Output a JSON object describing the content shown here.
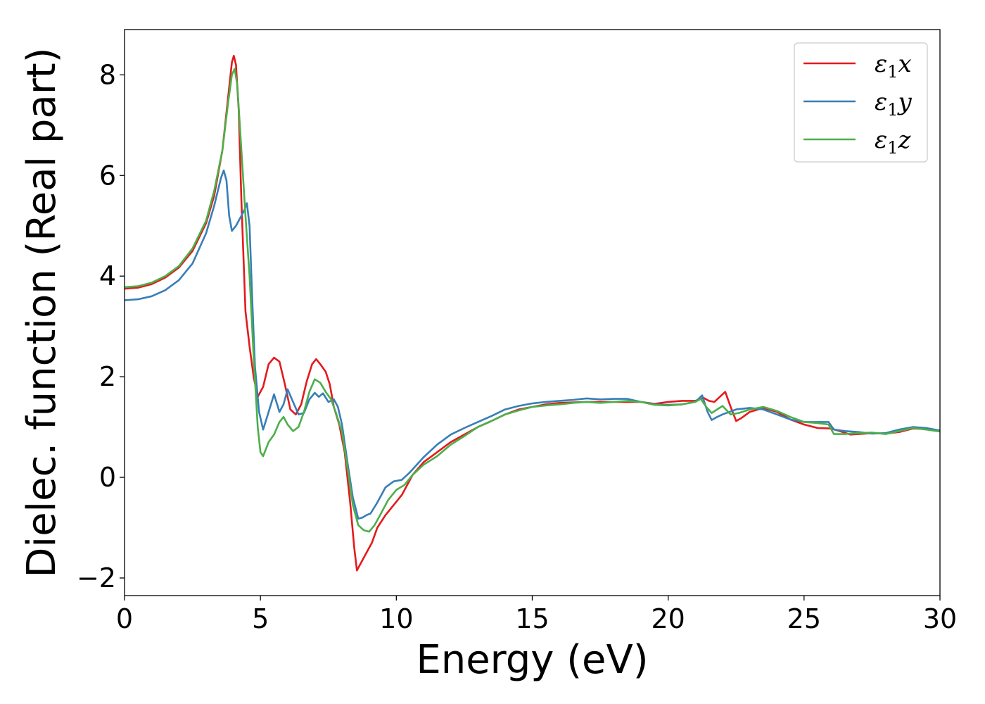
{
  "chart_data": {
    "type": "line",
    "title": "",
    "xlabel": "Energy (eV)",
    "ylabel": "Dielec. function (Real part)",
    "xlim": [
      0,
      30
    ],
    "ylim": [
      -2.35,
      8.9
    ],
    "xticks": [
      0,
      5,
      10,
      15,
      20,
      25,
      30
    ],
    "yticks": [
      -2,
      0,
      2,
      4,
      6,
      8
    ],
    "grid": false,
    "legend_position": "top-right",
    "series": [
      {
        "name": "ε1x",
        "label_base": "ε",
        "label_sub": "1",
        "label_suffix": "x",
        "color": "#e41a1c",
        "points": [
          [
            0,
            3.75
          ],
          [
            0.5,
            3.77
          ],
          [
            1.0,
            3.84
          ],
          [
            1.5,
            3.97
          ],
          [
            2.0,
            4.17
          ],
          [
            2.5,
            4.5
          ],
          [
            3.0,
            5.05
          ],
          [
            3.3,
            5.6
          ],
          [
            3.6,
            6.5
          ],
          [
            3.8,
            7.5
          ],
          [
            3.95,
            8.25
          ],
          [
            4.02,
            8.38
          ],
          [
            4.1,
            8.2
          ],
          [
            4.2,
            7.3
          ],
          [
            4.3,
            5.5
          ],
          [
            4.45,
            3.3
          ],
          [
            4.6,
            2.6
          ],
          [
            4.75,
            2.0
          ],
          [
            4.9,
            1.6
          ],
          [
            5.1,
            1.8
          ],
          [
            5.3,
            2.25
          ],
          [
            5.5,
            2.38
          ],
          [
            5.7,
            2.3
          ],
          [
            5.9,
            1.85
          ],
          [
            6.1,
            1.35
          ],
          [
            6.3,
            1.25
          ],
          [
            6.5,
            1.45
          ],
          [
            6.7,
            1.9
          ],
          [
            6.9,
            2.25
          ],
          [
            7.05,
            2.35
          ],
          [
            7.2,
            2.25
          ],
          [
            7.4,
            2.1
          ],
          [
            7.55,
            1.85
          ],
          [
            7.7,
            1.4
          ],
          [
            7.9,
            1.05
          ],
          [
            8.1,
            0.5
          ],
          [
            8.3,
            -0.5
          ],
          [
            8.45,
            -1.4
          ],
          [
            8.55,
            -1.85
          ],
          [
            8.7,
            -1.7
          ],
          [
            8.9,
            -1.5
          ],
          [
            9.1,
            -1.3
          ],
          [
            9.3,
            -1.0
          ],
          [
            9.6,
            -0.75
          ],
          [
            9.9,
            -0.55
          ],
          [
            10.2,
            -0.35
          ],
          [
            10.6,
            0.05
          ],
          [
            11.0,
            0.3
          ],
          [
            11.5,
            0.5
          ],
          [
            12.0,
            0.7
          ],
          [
            12.5,
            0.85
          ],
          [
            13.0,
            1.0
          ],
          [
            13.5,
            1.12
          ],
          [
            14.0,
            1.25
          ],
          [
            14.5,
            1.35
          ],
          [
            15.0,
            1.4
          ],
          [
            15.5,
            1.45
          ],
          [
            16.0,
            1.48
          ],
          [
            17.0,
            1.5
          ],
          [
            18.0,
            1.5
          ],
          [
            19.0,
            1.5
          ],
          [
            19.5,
            1.46
          ],
          [
            20.0,
            1.5
          ],
          [
            20.5,
            1.52
          ],
          [
            21.0,
            1.52
          ],
          [
            21.3,
            1.58
          ],
          [
            21.5,
            1.52
          ],
          [
            21.7,
            1.5
          ],
          [
            21.9,
            1.6
          ],
          [
            22.1,
            1.7
          ],
          [
            22.3,
            1.4
          ],
          [
            22.5,
            1.12
          ],
          [
            22.7,
            1.18
          ],
          [
            23.0,
            1.3
          ],
          [
            23.5,
            1.38
          ],
          [
            24.0,
            1.3
          ],
          [
            24.5,
            1.15
          ],
          [
            25.0,
            1.05
          ],
          [
            25.5,
            0.98
          ],
          [
            26.0,
            0.97
          ],
          [
            26.3,
            0.92
          ],
          [
            26.7,
            0.85
          ],
          [
            27.0,
            0.86
          ],
          [
            27.5,
            0.88
          ],
          [
            28.0,
            0.87
          ],
          [
            28.5,
            0.9
          ],
          [
            29.0,
            0.97
          ],
          [
            29.5,
            0.96
          ],
          [
            30.0,
            0.93
          ]
        ]
      },
      {
        "name": "ε1y",
        "label_base": "ε",
        "label_sub": "1",
        "label_suffix": "y",
        "color": "#377eb8",
        "points": [
          [
            0,
            3.52
          ],
          [
            0.5,
            3.54
          ],
          [
            1.0,
            3.6
          ],
          [
            1.5,
            3.72
          ],
          [
            2.0,
            3.92
          ],
          [
            2.5,
            4.25
          ],
          [
            3.0,
            4.85
          ],
          [
            3.3,
            5.4
          ],
          [
            3.55,
            5.95
          ],
          [
            3.65,
            6.1
          ],
          [
            3.75,
            5.9
          ],
          [
            3.85,
            5.2
          ],
          [
            3.95,
            4.9
          ],
          [
            4.1,
            5.0
          ],
          [
            4.25,
            5.15
          ],
          [
            4.4,
            5.3
          ],
          [
            4.5,
            5.45
          ],
          [
            4.6,
            5.0
          ],
          [
            4.7,
            3.5
          ],
          [
            4.8,
            2.2
          ],
          [
            4.95,
            1.3
          ],
          [
            5.1,
            0.95
          ],
          [
            5.3,
            1.3
          ],
          [
            5.5,
            1.65
          ],
          [
            5.7,
            1.3
          ],
          [
            5.85,
            1.45
          ],
          [
            6.0,
            1.75
          ],
          [
            6.2,
            1.5
          ],
          [
            6.4,
            1.25
          ],
          [
            6.6,
            1.28
          ],
          [
            6.8,
            1.55
          ],
          [
            7.0,
            1.68
          ],
          [
            7.15,
            1.6
          ],
          [
            7.3,
            1.67
          ],
          [
            7.5,
            1.5
          ],
          [
            7.7,
            1.55
          ],
          [
            7.85,
            1.4
          ],
          [
            8.0,
            1.05
          ],
          [
            8.2,
            0.3
          ],
          [
            8.4,
            -0.4
          ],
          [
            8.6,
            -0.82
          ],
          [
            8.75,
            -0.8
          ],
          [
            8.9,
            -0.75
          ],
          [
            9.05,
            -0.72
          ],
          [
            9.3,
            -0.5
          ],
          [
            9.6,
            -0.2
          ],
          [
            9.9,
            -0.08
          ],
          [
            10.2,
            -0.05
          ],
          [
            10.5,
            0.1
          ],
          [
            11.0,
            0.4
          ],
          [
            11.5,
            0.65
          ],
          [
            12.0,
            0.85
          ],
          [
            12.5,
            0.98
          ],
          [
            13.0,
            1.1
          ],
          [
            13.5,
            1.22
          ],
          [
            14.0,
            1.35
          ],
          [
            14.5,
            1.42
          ],
          [
            15.0,
            1.47
          ],
          [
            15.5,
            1.5
          ],
          [
            16.0,
            1.52
          ],
          [
            16.5,
            1.54
          ],
          [
            17.0,
            1.57
          ],
          [
            17.5,
            1.55
          ],
          [
            18.0,
            1.56
          ],
          [
            18.5,
            1.56
          ],
          [
            19.0,
            1.5
          ],
          [
            19.5,
            1.45
          ],
          [
            20.0,
            1.44
          ],
          [
            20.5,
            1.45
          ],
          [
            21.0,
            1.5
          ],
          [
            21.25,
            1.63
          ],
          [
            21.45,
            1.3
          ],
          [
            21.6,
            1.14
          ],
          [
            21.8,
            1.2
          ],
          [
            22.0,
            1.25
          ],
          [
            22.5,
            1.35
          ],
          [
            23.0,
            1.38
          ],
          [
            23.5,
            1.35
          ],
          [
            24.0,
            1.25
          ],
          [
            24.5,
            1.15
          ],
          [
            25.0,
            1.1
          ],
          [
            25.5,
            1.1
          ],
          [
            25.9,
            1.1
          ],
          [
            26.1,
            0.95
          ],
          [
            26.5,
            0.92
          ],
          [
            27.0,
            0.9
          ],
          [
            27.5,
            0.87
          ],
          [
            28.0,
            0.88
          ],
          [
            28.5,
            0.95
          ],
          [
            29.0,
            1.0
          ],
          [
            29.5,
            0.98
          ],
          [
            30.0,
            0.93
          ]
        ]
      },
      {
        "name": "ε1z",
        "label_base": "ε",
        "label_sub": "1",
        "label_suffix": "z",
        "color": "#4daf4a",
        "points": [
          [
            0,
            3.78
          ],
          [
            0.5,
            3.8
          ],
          [
            1.0,
            3.87
          ],
          [
            1.5,
            4.0
          ],
          [
            2.0,
            4.2
          ],
          [
            2.5,
            4.55
          ],
          [
            3.0,
            5.1
          ],
          [
            3.3,
            5.7
          ],
          [
            3.6,
            6.5
          ],
          [
            3.8,
            7.4
          ],
          [
            3.95,
            8.0
          ],
          [
            4.05,
            8.12
          ],
          [
            4.15,
            7.8
          ],
          [
            4.3,
            6.5
          ],
          [
            4.45,
            5.2
          ],
          [
            4.6,
            4.0
          ],
          [
            4.75,
            2.4
          ],
          [
            4.9,
            1.0
          ],
          [
            5.0,
            0.5
          ],
          [
            5.1,
            0.42
          ],
          [
            5.3,
            0.7
          ],
          [
            5.5,
            0.85
          ],
          [
            5.7,
            1.1
          ],
          [
            5.85,
            1.2
          ],
          [
            6.0,
            1.05
          ],
          [
            6.2,
            0.92
          ],
          [
            6.4,
            1.0
          ],
          [
            6.6,
            1.3
          ],
          [
            6.8,
            1.7
          ],
          [
            7.0,
            1.95
          ],
          [
            7.2,
            1.88
          ],
          [
            7.4,
            1.7
          ],
          [
            7.6,
            1.55
          ],
          [
            7.8,
            1.25
          ],
          [
            8.0,
            0.9
          ],
          [
            8.2,
            0.2
          ],
          [
            8.4,
            -0.55
          ],
          [
            8.6,
            -0.95
          ],
          [
            8.8,
            -1.05
          ],
          [
            9.0,
            -1.08
          ],
          [
            9.2,
            -0.95
          ],
          [
            9.4,
            -0.75
          ],
          [
            9.7,
            -0.45
          ],
          [
            10.0,
            -0.25
          ],
          [
            10.3,
            -0.15
          ],
          [
            10.6,
            0.05
          ],
          [
            11.0,
            0.25
          ],
          [
            11.5,
            0.42
          ],
          [
            12.0,
            0.65
          ],
          [
            12.5,
            0.82
          ],
          [
            13.0,
            1.0
          ],
          [
            13.5,
            1.12
          ],
          [
            14.0,
            1.25
          ],
          [
            14.5,
            1.33
          ],
          [
            15.0,
            1.4
          ],
          [
            15.5,
            1.43
          ],
          [
            16.0,
            1.45
          ],
          [
            16.5,
            1.48
          ],
          [
            17.0,
            1.5
          ],
          [
            17.5,
            1.48
          ],
          [
            18.0,
            1.5
          ],
          [
            18.5,
            1.52
          ],
          [
            19.0,
            1.5
          ],
          [
            19.5,
            1.44
          ],
          [
            20.0,
            1.43
          ],
          [
            20.5,
            1.45
          ],
          [
            21.0,
            1.5
          ],
          [
            21.2,
            1.56
          ],
          [
            21.4,
            1.4
          ],
          [
            21.6,
            1.28
          ],
          [
            21.8,
            1.35
          ],
          [
            22.0,
            1.42
          ],
          [
            22.3,
            1.25
          ],
          [
            22.6,
            1.28
          ],
          [
            23.0,
            1.35
          ],
          [
            23.5,
            1.4
          ],
          [
            24.0,
            1.32
          ],
          [
            24.5,
            1.2
          ],
          [
            25.0,
            1.1
          ],
          [
            25.5,
            1.08
          ],
          [
            25.9,
            1.05
          ],
          [
            26.1,
            0.86
          ],
          [
            26.5,
            0.86
          ],
          [
            27.0,
            0.88
          ],
          [
            27.5,
            0.89
          ],
          [
            28.0,
            0.86
          ],
          [
            28.5,
            0.92
          ],
          [
            29.0,
            0.98
          ],
          [
            29.5,
            0.95
          ],
          [
            30.0,
            0.91
          ]
        ]
      }
    ]
  }
}
